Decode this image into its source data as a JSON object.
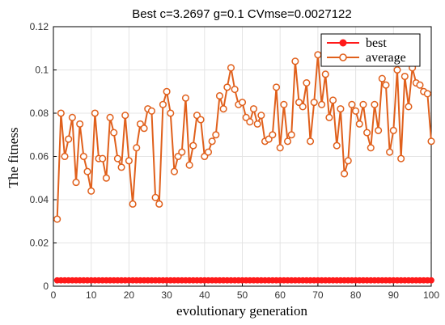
{
  "chart_data": {
    "type": "line",
    "title": "Best c=3.2697 g=0.1 CVmse=0.0027122",
    "xlabel": "evolutionary generation",
    "ylabel": "The fitness",
    "xlim": [
      0,
      100
    ],
    "ylim": [
      0,
      0.12
    ],
    "xticks": [
      "0",
      "10",
      "20",
      "30",
      "40",
      "50",
      "60",
      "70",
      "80",
      "90",
      "100"
    ],
    "yticks": [
      "0",
      "0.02",
      "0.04",
      "0.06",
      "0.08",
      "0.1",
      "0.12"
    ],
    "grid": true,
    "legend_position": "top-right",
    "x": [
      1,
      2,
      3,
      4,
      5,
      6,
      7,
      8,
      9,
      10,
      11,
      12,
      13,
      14,
      15,
      16,
      17,
      18,
      19,
      20,
      21,
      22,
      23,
      24,
      25,
      26,
      27,
      28,
      29,
      30,
      31,
      32,
      33,
      34,
      35,
      36,
      37,
      38,
      39,
      40,
      41,
      42,
      43,
      44,
      45,
      46,
      47,
      48,
      49,
      50,
      51,
      52,
      53,
      54,
      55,
      56,
      57,
      58,
      59,
      60,
      61,
      62,
      63,
      64,
      65,
      66,
      67,
      68,
      69,
      70,
      71,
      72,
      73,
      74,
      75,
      76,
      77,
      78,
      79,
      80,
      81,
      82,
      83,
      84,
      85,
      86,
      87,
      88,
      89,
      90,
      91,
      92,
      93,
      94,
      95,
      96,
      97,
      98,
      99,
      100
    ],
    "series": [
      {
        "name": "best",
        "color": "#ff1a1a",
        "marker": "filled-circle",
        "values": [
          0.0027,
          0.0027,
          0.0027,
          0.0027,
          0.0027,
          0.0027,
          0.0027,
          0.0027,
          0.0027,
          0.0027,
          0.0027,
          0.0027,
          0.0027,
          0.0027,
          0.0027,
          0.0027,
          0.0027,
          0.0027,
          0.0027,
          0.0027,
          0.0027,
          0.0027,
          0.0027,
          0.0027,
          0.0027,
          0.0027,
          0.0027,
          0.0027,
          0.0027,
          0.0027,
          0.0027,
          0.0027,
          0.0027,
          0.0027,
          0.0027,
          0.0027,
          0.0027,
          0.0027,
          0.0027,
          0.0027,
          0.0027,
          0.0027,
          0.0027,
          0.0027,
          0.0027,
          0.0027,
          0.0027,
          0.0027,
          0.0027,
          0.0027,
          0.0027,
          0.0027,
          0.0027,
          0.0027,
          0.0027,
          0.0027,
          0.0027,
          0.0027,
          0.0027,
          0.0027,
          0.0027,
          0.0027,
          0.0027,
          0.0027,
          0.0027,
          0.0027,
          0.0027,
          0.0027,
          0.0027,
          0.0027,
          0.0027,
          0.0027,
          0.0027,
          0.0027,
          0.0027,
          0.0027,
          0.0027,
          0.0027,
          0.0027,
          0.0027,
          0.0027,
          0.0027,
          0.0027,
          0.0027,
          0.0027,
          0.0027,
          0.0027,
          0.0027,
          0.0027,
          0.0027,
          0.0027,
          0.0027,
          0.0027,
          0.0027,
          0.0027,
          0.0027,
          0.0027,
          0.0027,
          0.0027,
          0.0027
        ]
      },
      {
        "name": "average",
        "color": "#e0601c",
        "marker": "open-circle",
        "values": [
          0.031,
          0.08,
          0.06,
          0.068,
          0.078,
          0.048,
          0.075,
          0.06,
          0.053,
          0.044,
          0.08,
          0.059,
          0.059,
          0.05,
          0.078,
          0.071,
          0.059,
          0.055,
          0.079,
          0.058,
          0.038,
          0.064,
          0.075,
          0.073,
          0.082,
          0.081,
          0.041,
          0.038,
          0.084,
          0.09,
          0.08,
          0.053,
          0.06,
          0.062,
          0.087,
          0.056,
          0.065,
          0.079,
          0.077,
          0.06,
          0.062,
          0.067,
          0.07,
          0.088,
          0.082,
          0.092,
          0.101,
          0.091,
          0.084,
          0.085,
          0.078,
          0.076,
          0.082,
          0.075,
          0.079,
          0.067,
          0.068,
          0.07,
          0.092,
          0.064,
          0.084,
          0.067,
          0.07,
          0.104,
          0.085,
          0.083,
          0.094,
          0.067,
          0.085,
          0.107,
          0.084,
          0.098,
          0.078,
          0.086,
          0.065,
          0.082,
          0.052,
          0.058,
          0.084,
          0.081,
          0.075,
          0.084,
          0.071,
          0.064,
          0.084,
          0.072,
          0.096,
          0.093,
          0.062,
          0.072,
          0.1,
          0.059,
          0.097,
          0.083,
          0.101,
          0.094,
          0.093,
          0.09,
          0.089,
          0.067
        ]
      }
    ]
  }
}
